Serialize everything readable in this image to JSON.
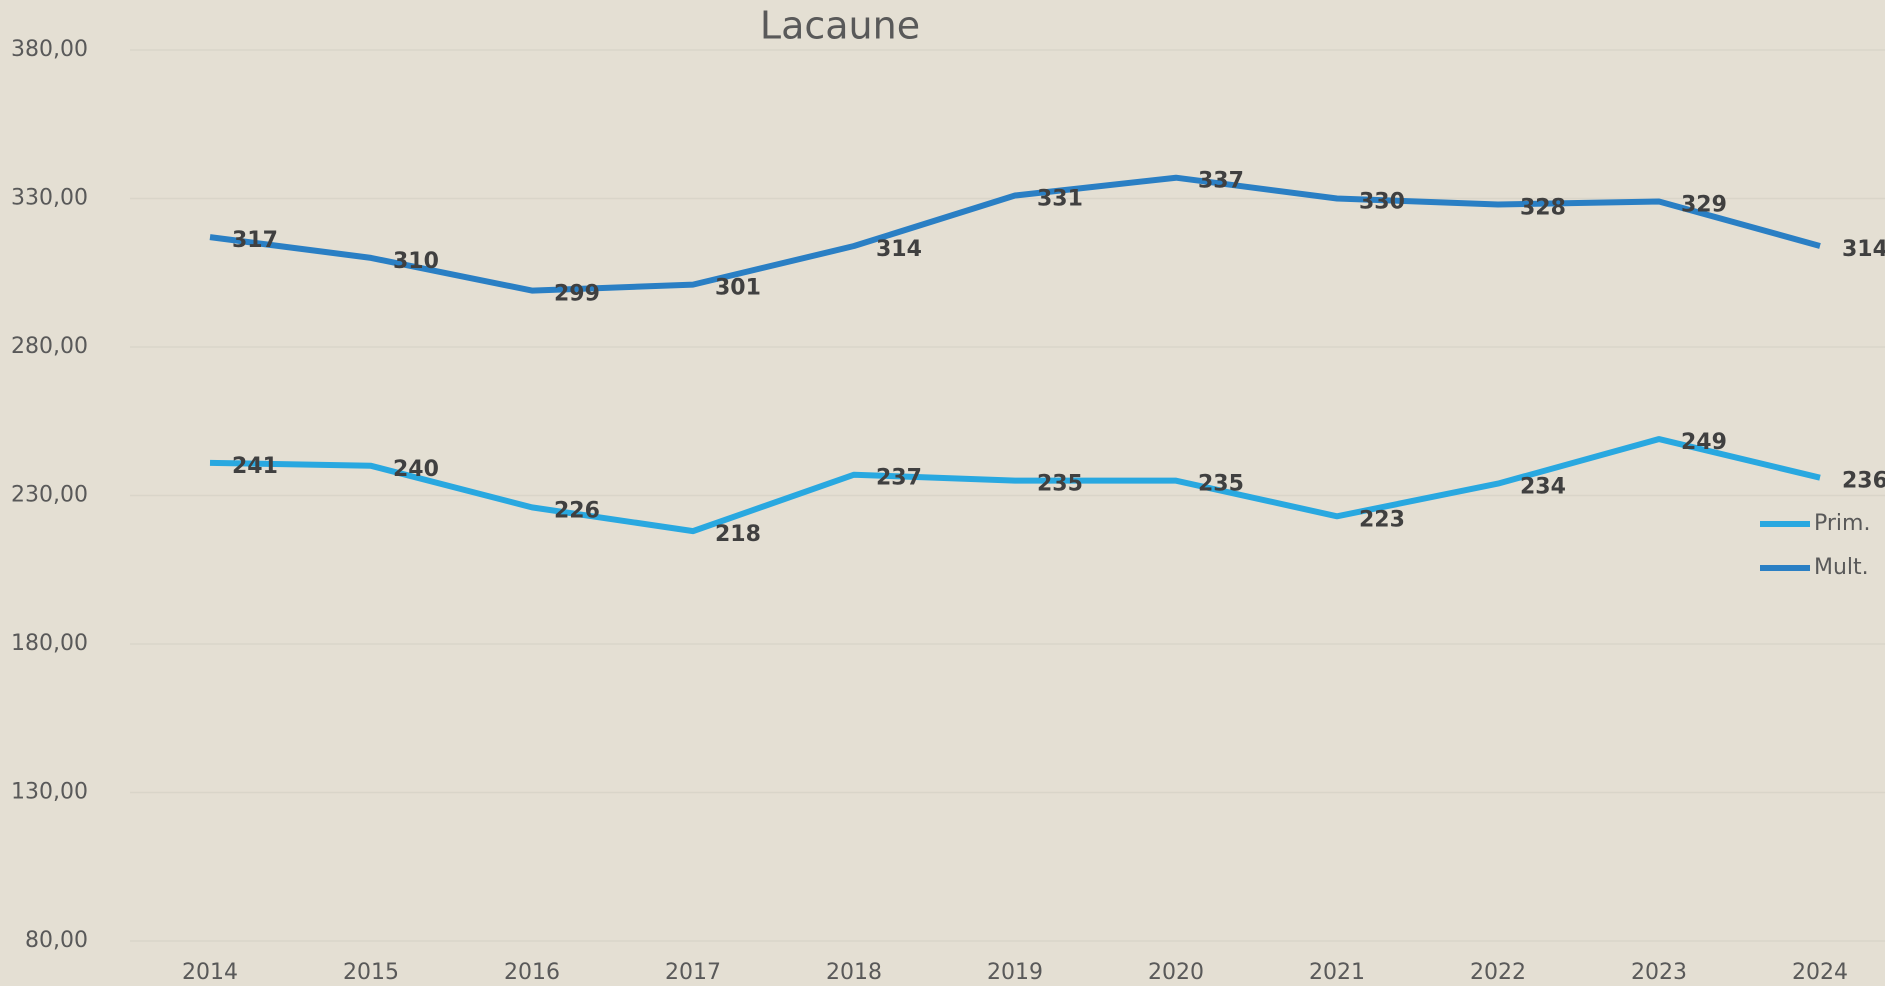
{
  "chart_data": {
    "type": "line",
    "title": "Lacaune",
    "categories": [
      "2014",
      "2015",
      "2016",
      "2017",
      "2018",
      "2019",
      "2020",
      "2021",
      "2022",
      "2023",
      "2024"
    ],
    "series": [
      {
        "name": "Prim.",
        "color": "#29a8e0",
        "values": [
          241,
          240,
          226,
          218,
          237,
          235,
          235,
          223,
          234,
          249,
          236
        ]
      },
      {
        "name": "Mult.",
        "color": "#2a7fc4",
        "values": [
          317,
          310,
          299,
          301,
          314,
          331,
          337,
          330,
          328,
          329,
          314
        ]
      }
    ],
    "ylim": [
      80,
      380
    ],
    "yticks": [
      {
        "value": 80,
        "label": "80,00"
      },
      {
        "value": 130,
        "label": "130,00"
      },
      {
        "value": 180,
        "label": "180,00"
      },
      {
        "value": 230,
        "label": "230,00"
      },
      {
        "value": 280,
        "label": "280,00"
      },
      {
        "value": 330,
        "label": "330,00"
      },
      {
        "value": 380,
        "label": "380,00"
      }
    ],
    "grid": true,
    "legend": "right"
  }
}
